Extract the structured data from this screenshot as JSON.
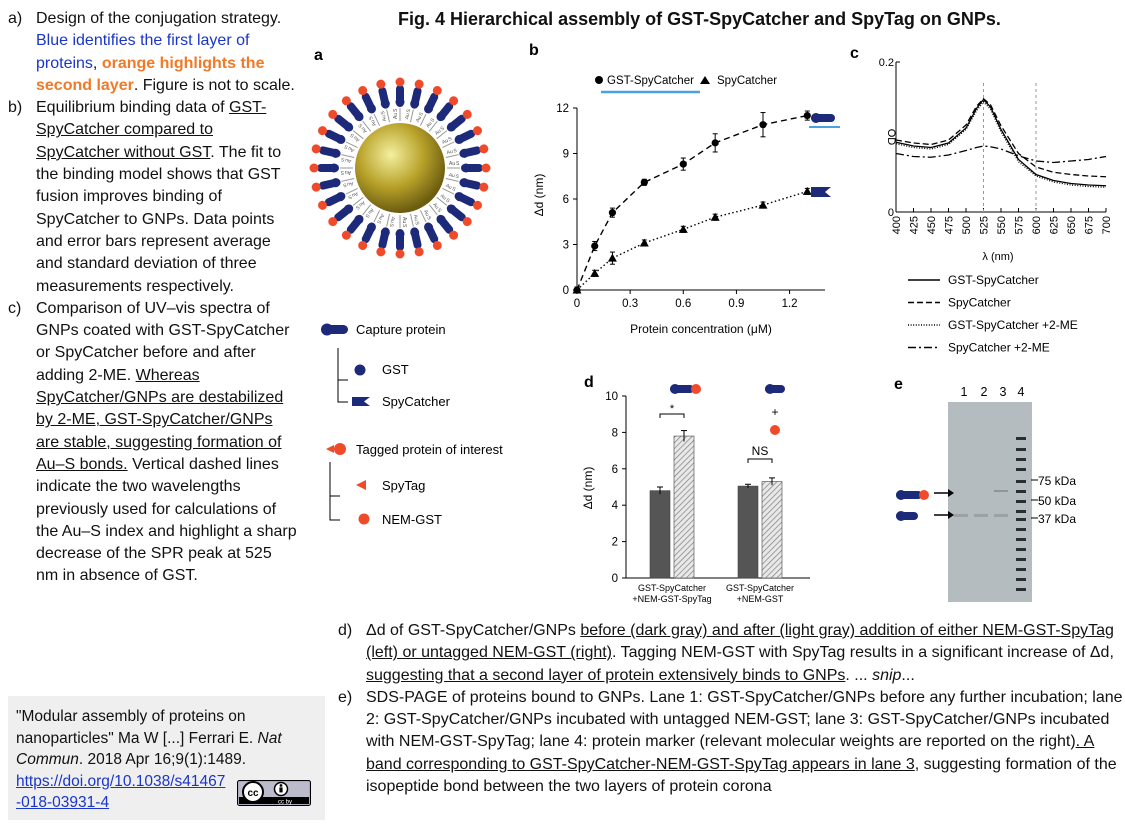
{
  "title": "Fig. 4 Hierarchical assembly of GST-SpyCatcher and SpyTag on GNPs.",
  "left_items": [
    {
      "marker": "a)",
      "parts": [
        {
          "t": "Design of the conjugation strategy. ",
          "c": ""
        },
        {
          "t": "Blue identifies the first layer of proteins",
          "c": "blue"
        },
        {
          "t": ", ",
          "c": ""
        },
        {
          "t": "orange highlights the second layer",
          "c": "orange"
        },
        {
          "t": ". Figure is not to scale.",
          "c": ""
        }
      ]
    },
    {
      "marker": "b)",
      "parts": [
        {
          "t": "Equilibrium binding data of ",
          "c": ""
        },
        {
          "t": "GST-SpyCatcher compared to SpyCatcher without GST",
          "c": "u"
        },
        {
          "t": ". The fit to the binding model shows that GST fusion improves binding of SpyCatcher to GNPs. Data points and error bars represent average and standard deviation of three measurements respectively.",
          "c": ""
        }
      ]
    },
    {
      "marker": "c)",
      "parts": [
        {
          "t": "Comparison of UV–vis spectra of GNPs coated with GST-SpyCatcher or SpyCatcher before and after adding 2-ME. ",
          "c": ""
        },
        {
          "t": "Whereas SpyCatcher/GNPs are destabilized by 2-ME, GST-SpyCatcher/GNPs are stable, suggesting formation of Au–S bonds.",
          "c": "u"
        },
        {
          "t": " Vertical dashed lines indicate the two wavelengths previously used for calculations of the Au–S index and highlight a sharp decrease of the SPR peak at 525 nm in absence of GST.",
          "c": ""
        }
      ]
    }
  ],
  "citation": {
    "line1": "\"Modular assembly of proteins on nanoparticles\" Ma W [...] Ferrari E.",
    "journal": "Nat Commun",
    "line2": ". 2018 Apr 16;9(1):1489.",
    "link": "https://doi.org/10.1038/s41467-018-03931-4",
    "license": "cc by"
  },
  "bottom_items": [
    {
      "marker": "d)",
      "parts": [
        {
          "t": "Δd of GST-SpyCatcher/GNPs ",
          "c": ""
        },
        {
          "t": "before (dark gray) and after (light gray) addition of either NEM-GST-SpyTag (left) or untagged NEM-GST (right)",
          "c": "u"
        },
        {
          "t": ". Tagging NEM-GST with SpyTag results in a significant increase of Δd, ",
          "c": ""
        },
        {
          "t": "suggesting that a second layer of protein extensively binds to GNPs",
          "c": "u"
        },
        {
          "t": ". ... ",
          "c": ""
        },
        {
          "t": "snip",
          "c": "i"
        },
        {
          "t": "...",
          "c": ""
        }
      ]
    },
    {
      "marker": "e)",
      "parts": [
        {
          "t": "SDS-PAGE of proteins bound to GNPs. Lane 1: GST-SpyCatcher/GNPs before any further incubation; lane 2: GST-SpyCatcher/GNPs incubated with untagged NEM-GST; lane 3: GST-SpyCatcher/GNPs incubated with NEM-GST-SpyTag; lane 4: protein marker (relevant molecular weights are reported on the right)",
          "c": ""
        },
        {
          "t": ". A band corresponding to GST-SpyCatcher-NEM-GST-SpyTag appears in lane 3",
          "c": "u"
        },
        {
          "t": ", suggesting formation of the isopeptide bond between the two layers of protein corona",
          "c": ""
        }
      ]
    }
  ],
  "panel_labels": {
    "a": "a",
    "b": "b",
    "c": "c",
    "d": "d",
    "e": "e"
  },
  "panel_a": {
    "ligand": "Au",
    "linker": "S",
    "legend": {
      "capture": "Capture protein",
      "gst": "GST",
      "spycatcher": "SpyCatcher",
      "tagged": "Tagged protein of interest",
      "spytag": "SpyTag",
      "nemgst": "NEM-GST"
    }
  },
  "chart_data": [
    {
      "type": "scatter",
      "xlabel": "Protein concentration (μM)",
      "ylabel": "Δd (nm)",
      "xlim": [
        0,
        1.4
      ],
      "ylim": [
        0,
        12
      ],
      "xticks": [
        "0",
        "0.3",
        "0.6",
        "0.9",
        "1.2"
      ],
      "yticks": [
        "0",
        "3",
        "6",
        "9",
        "12"
      ],
      "legend_position": "top",
      "series": [
        {
          "name": "GST-SpyCatcher",
          "marker": "circle",
          "fit": "dashed",
          "x": [
            0,
            0.1,
            0.2,
            0.38,
            0.6,
            0.78,
            1.05,
            1.3
          ],
          "y": [
            0,
            2.9,
            5.1,
            7.1,
            8.3,
            9.7,
            10.9,
            11.5
          ],
          "err": [
            0.2,
            0.3,
            0.3,
            0.2,
            0.4,
            0.6,
            0.8,
            0.3
          ]
        },
        {
          "name": "SpyCatcher",
          "marker": "triangle",
          "fit": "dotted",
          "x": [
            0,
            0.1,
            0.2,
            0.38,
            0.6,
            0.78,
            1.05,
            1.3
          ],
          "y": [
            0,
            1.1,
            2.1,
            3.1,
            4.0,
            4.8,
            5.6,
            6.5
          ],
          "err": [
            0.1,
            0.2,
            0.4,
            0.2,
            0.2,
            0.2,
            0.2,
            0.2
          ]
        }
      ]
    },
    {
      "type": "line",
      "xlabel": "λ (nm)",
      "ylabel": "OD",
      "xlim": [
        400,
        700
      ],
      "ylim": [
        0,
        0.2
      ],
      "xticks": [
        "400",
        "425",
        "450",
        "475",
        "500",
        "525",
        "550",
        "575",
        "600",
        "625",
        "650",
        "675",
        "700"
      ],
      "yticks": [
        "0",
        "0.2"
      ],
      "vlines": [
        525,
        600
      ],
      "x": [
        400,
        425,
        450,
        475,
        500,
        515,
        525,
        535,
        550,
        575,
        600,
        625,
        650,
        675,
        700
      ],
      "series": [
        {
          "name": "GST-SpyCatcher",
          "style": "solid",
          "y": [
            0.093,
            0.088,
            0.086,
            0.092,
            0.112,
            0.138,
            0.15,
            0.14,
            0.11,
            0.07,
            0.05,
            0.042,
            0.038,
            0.036,
            0.035
          ]
        },
        {
          "name": "SpyCatcher",
          "style": "dashed",
          "y": [
            0.096,
            0.092,
            0.09,
            0.096,
            0.116,
            0.141,
            0.151,
            0.143,
            0.115,
            0.078,
            0.06,
            0.053,
            0.05,
            0.048,
            0.047
          ]
        },
        {
          "name": "GST-SpyCatcher +2-ME",
          "style": "dotted",
          "y": [
            0.091,
            0.086,
            0.084,
            0.09,
            0.11,
            0.135,
            0.147,
            0.137,
            0.107,
            0.067,
            0.048,
            0.04,
            0.036,
            0.034,
            0.033
          ]
        },
        {
          "name": "SpyCatcher +2-ME",
          "style": "dashdot",
          "y": [
            0.078,
            0.074,
            0.073,
            0.076,
            0.082,
            0.086,
            0.088,
            0.087,
            0.084,
            0.075,
            0.068,
            0.066,
            0.068,
            0.07,
            0.074
          ]
        }
      ]
    },
    {
      "type": "bar",
      "ylabel": "Δd (nm)",
      "ylim": [
        0,
        10
      ],
      "yticks": [
        "0",
        "2",
        "4",
        "6",
        "8",
        "10"
      ],
      "categories": [
        "GST-SpyCatcher\n+NEM-GST-SpyTag",
        "GST-SpyCatcher\n+NEM-GST"
      ],
      "series": [
        {
          "name": "before",
          "color": "#555555",
          "values": [
            4.8,
            5.05
          ],
          "err": [
            0.2,
            0.1
          ]
        },
        {
          "name": "after",
          "color": "#c8c8c8",
          "pattern": "hatched",
          "values": [
            7.8,
            5.3
          ],
          "err": [
            0.3,
            0.2
          ]
        }
      ],
      "annotations": [
        "*",
        "NS",
        "+"
      ]
    }
  ],
  "panel_e": {
    "lanes": [
      "1",
      "2",
      "3",
      "4"
    ],
    "markers": [
      "75 kDa",
      "50 kDa",
      "37 kDa"
    ]
  }
}
